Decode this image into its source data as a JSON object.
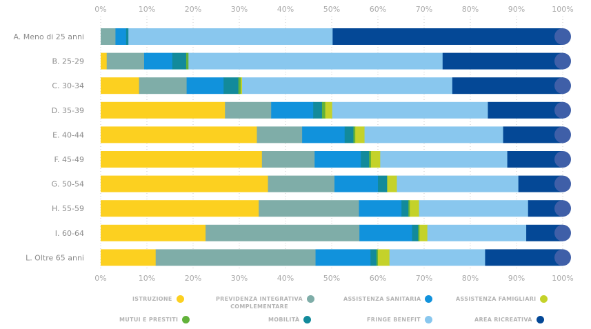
{
  "chart_data": {
    "type": "bar",
    "orientation": "horizontal",
    "stacked": true,
    "title": "",
    "xlabel": "",
    "ylabel": "",
    "xlim": [
      0,
      100
    ],
    "x_ticks": [
      "0%",
      "10%",
      "20%",
      "30%",
      "40%",
      "50%",
      "60%",
      "70%",
      "80%",
      "90%",
      "100%"
    ],
    "grid": "vertical dotted",
    "legend_position": "bottom",
    "categories": [
      "A. Meno di 25 anni",
      "B. 25-29",
      "C. 30-34",
      "D. 35-39",
      "E. 40-44",
      "F. 45-49",
      "G. 50-54",
      "H. 55-59",
      "I. 60-64",
      "L. Oltre 65 anni"
    ],
    "series": [
      {
        "name": "ISTRUZIONE",
        "color": "#fcd020",
        "values": [
          0,
          1.3,
          8.3,
          26.9,
          33.8,
          34.9,
          36.2,
          34.2,
          22.7,
          11.9
        ]
      },
      {
        "name": "PREVIDENZA INTEGRATIVA COMPLEMENTARE",
        "color": "#7fada8",
        "values": [
          3.2,
          8.1,
          10.3,
          10.0,
          9.8,
          11.4,
          14.4,
          21.7,
          33.3,
          34.6
        ]
      },
      {
        "name": "ASSISTENZA SANITARIA",
        "color": "#1192dc",
        "values": [
          2.3,
          6.1,
          8.0,
          9.1,
          9.2,
          10.0,
          9.4,
          9.2,
          11.4,
          11.9
        ]
      },
      {
        "name": "MOBILITÀ",
        "color": "#128a9b",
        "values": [
          0.5,
          3.0,
          3.2,
          1.9,
          1.9,
          1.8,
          2.0,
          1.5,
          1.3,
          1.3
        ]
      },
      {
        "name": "MUTUI E PRESTITI",
        "color": "#62b23a",
        "values": [
          0,
          0.5,
          0.5,
          0.7,
          0.4,
          0.4,
          0,
          0.3,
          0.3,
          0.3
        ]
      },
      {
        "name": "ASSISTENZA FAMIGLIARI",
        "color": "#c4d22a",
        "values": [
          0,
          0,
          0.3,
          1.5,
          2.0,
          2.0,
          2.1,
          2.0,
          1.7,
          2.5
        ]
      },
      {
        "name": "FRINGE BENEFIT",
        "color": "#89c7ee",
        "values": [
          44.2,
          55.0,
          45.5,
          33.7,
          30.0,
          27.5,
          26.3,
          23.6,
          21.4,
          20.7
        ]
      },
      {
        "name": "AREA RICREATIVA",
        "color": "#044896",
        "values": [
          49.8,
          26.0,
          24.0,
          16.2,
          13.0,
          12.0,
          9.6,
          7.5,
          7.9,
          16.8
        ]
      }
    ]
  },
  "legend": {
    "items": [
      {
        "label": "ISTRUZIONE",
        "color": "#fcd020"
      },
      {
        "label": "PREVIDENZA INTEGRATIVA\nCOMPLEMENTARE",
        "color": "#7fada8"
      },
      {
        "label": "ASSISTENZA SANITARIA",
        "color": "#1192dc"
      },
      {
        "label": "ASSISTENZA FAMIGLIARI",
        "color": "#c4d22a"
      },
      {
        "label": "MUTUI E PRESTITI",
        "color": "#62b23a"
      },
      {
        "label": "MOBILITÀ",
        "color": "#128a9b"
      },
      {
        "label": "FRINGE BENEFIT",
        "color": "#89c7ee"
      },
      {
        "label": "AREA RICREATIVA",
        "color": "#044896"
      }
    ]
  },
  "colors": {
    "end_cap": "#3f5fa8",
    "grid": "#c8c8c8",
    "tick_text": "#a9a9a9",
    "category_text": "#8c8c8c"
  }
}
